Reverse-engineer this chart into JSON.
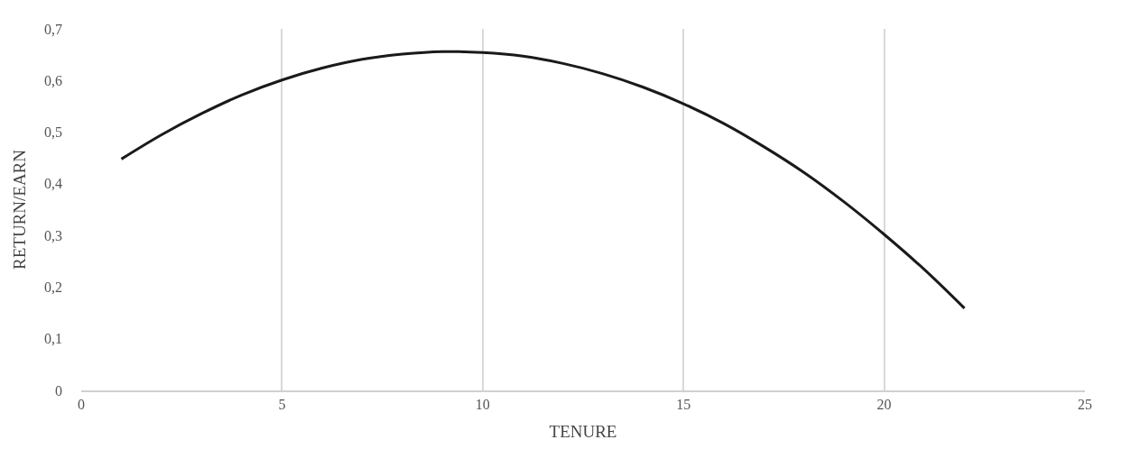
{
  "chart_data": {
    "type": "line",
    "xlabel": "TENURE",
    "ylabel": "RETURN/EARN",
    "x": [
      1,
      2,
      3,
      4,
      5,
      6,
      7,
      8,
      9,
      10,
      11,
      12,
      13,
      14,
      15,
      16,
      17,
      18,
      19,
      20,
      21,
      22
    ],
    "series": [
      {
        "color": "#1a1a1a",
        "values": [
          0.448,
          0.495,
          0.536,
          0.572,
          0.601,
          0.624,
          0.641,
          0.651,
          0.656,
          0.654,
          0.647,
          0.633,
          0.613,
          0.587,
          0.555,
          0.517,
          0.472,
          0.422,
          0.365,
          0.302,
          0.234,
          0.159
        ]
      }
    ],
    "xlim": [
      0,
      25
    ],
    "xticks": [
      0,
      5,
      10,
      15,
      20,
      25
    ],
    "ylim": [
      0,
      0.7
    ],
    "yticks": [
      {
        "value": 0,
        "label": "0"
      },
      {
        "value": 0.1,
        "label": "0,1"
      },
      {
        "value": 0.2,
        "label": "0,2"
      },
      {
        "value": 0.3,
        "label": "0,3"
      },
      {
        "value": 0.4,
        "label": "0,4"
      },
      {
        "value": 0.5,
        "label": "0,5"
      },
      {
        "value": 0.6,
        "label": "0,6"
      },
      {
        "value": 0.7,
        "label": "0,7"
      }
    ],
    "grid": "x",
    "marker": "none",
    "line_style": "solid"
  }
}
